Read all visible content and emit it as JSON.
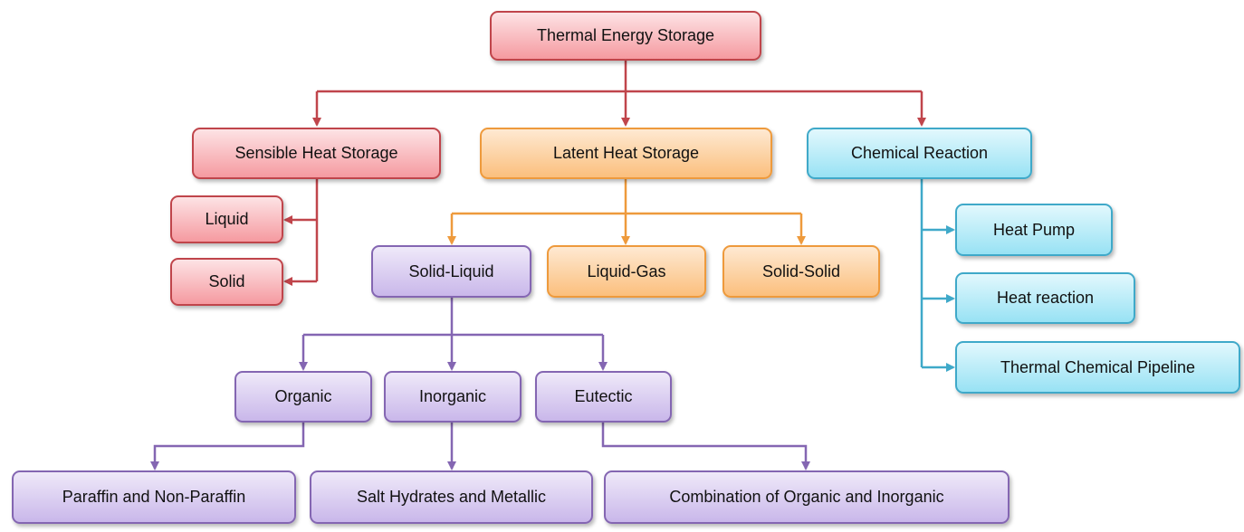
{
  "root": {
    "label": "Thermal Energy Storage",
    "color": "#c0454b"
  },
  "sensible": {
    "label": "Sensible Heat Storage",
    "color": "#c0454b",
    "children": [
      "Liquid",
      "Solid"
    ]
  },
  "latent": {
    "label": "Latent Heat Storage",
    "color": "#ee9a3c",
    "children": [
      "Solid-Liquid",
      "Liquid-Gas",
      "Solid-Solid"
    ]
  },
  "chemical": {
    "label": "Chemical Reaction",
    "color": "#3fa9c9",
    "children": [
      "Heat Pump",
      "Heat reaction",
      "Thermal Chemical Pipeline"
    ]
  },
  "solid_liquid": {
    "color": "#8466b2",
    "children": [
      "Organic",
      "Inorganic",
      "Eutectic"
    ],
    "leaves": [
      "Paraffin and Non-Paraffin",
      "Salt Hydrates and Metallic",
      "Combination of Organic and Inorganic"
    ]
  }
}
